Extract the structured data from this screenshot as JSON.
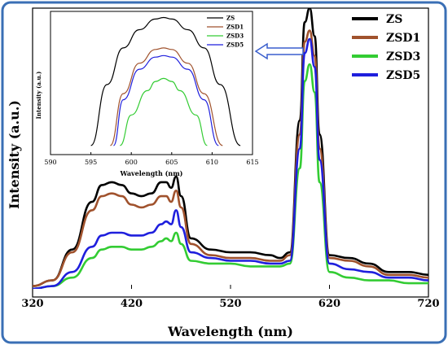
{
  "chart_data": [
    {
      "type": "line",
      "xlabel": "Wavelength (nm)",
      "ylabel": "Intensity (a.u.)",
      "xlim": [
        320,
        720
      ],
      "ylim": [
        0,
        1
      ],
      "xticks": [
        320,
        420,
        520,
        620,
        720
      ],
      "grid": false,
      "legend": "top-right",
      "series": [
        {
          "name": "ZS",
          "color": "#000000",
          "x": [
            320,
            340,
            360,
            380,
            390,
            400,
            410,
            420,
            430,
            440,
            450,
            455,
            460,
            465,
            470,
            480,
            500,
            520,
            540,
            560,
            570,
            580,
            590,
            595,
            600,
            605,
            610,
            620,
            640,
            660,
            680,
            700,
            720
          ],
          "y": [
            0.01,
            0.03,
            0.14,
            0.31,
            0.37,
            0.38,
            0.37,
            0.34,
            0.33,
            0.34,
            0.38,
            0.38,
            0.36,
            0.4,
            0.33,
            0.18,
            0.14,
            0.13,
            0.13,
            0.12,
            0.11,
            0.13,
            0.6,
            0.95,
            1.0,
            0.9,
            0.55,
            0.12,
            0.11,
            0.09,
            0.06,
            0.06,
            0.05
          ]
        },
        {
          "name": "ZSD1",
          "color": "#a0522d",
          "x": [
            320,
            340,
            360,
            380,
            390,
            400,
            410,
            420,
            430,
            440,
            450,
            455,
            460,
            465,
            470,
            480,
            500,
            520,
            540,
            560,
            570,
            580,
            590,
            595,
            600,
            605,
            610,
            620,
            640,
            660,
            680,
            700,
            720
          ],
          "y": [
            0.01,
            0.03,
            0.13,
            0.28,
            0.33,
            0.34,
            0.33,
            0.3,
            0.29,
            0.3,
            0.33,
            0.33,
            0.31,
            0.35,
            0.29,
            0.16,
            0.12,
            0.11,
            0.11,
            0.1,
            0.1,
            0.12,
            0.55,
            0.88,
            0.92,
            0.83,
            0.5,
            0.11,
            0.1,
            0.08,
            0.05,
            0.05,
            0.04
          ]
        },
        {
          "name": "ZSD3",
          "color": "#33cc33",
          "x": [
            320,
            340,
            360,
            380,
            390,
            400,
            410,
            420,
            430,
            440,
            450,
            455,
            460,
            465,
            470,
            480,
            500,
            520,
            540,
            560,
            570,
            580,
            590,
            595,
            600,
            605,
            610,
            620,
            640,
            660,
            680,
            700,
            720
          ],
          "y": [
            0.0,
            0.01,
            0.04,
            0.11,
            0.14,
            0.15,
            0.15,
            0.14,
            0.14,
            0.15,
            0.17,
            0.18,
            0.17,
            0.2,
            0.16,
            0.1,
            0.09,
            0.09,
            0.08,
            0.08,
            0.08,
            0.09,
            0.43,
            0.74,
            0.8,
            0.7,
            0.38,
            0.06,
            0.04,
            0.03,
            0.03,
            0.02,
            0.02
          ]
        },
        {
          "name": "ZSD5",
          "color": "#1f1fdd",
          "x": [
            320,
            340,
            360,
            380,
            390,
            400,
            410,
            420,
            430,
            440,
            450,
            455,
            460,
            465,
            470,
            480,
            500,
            520,
            540,
            560,
            570,
            580,
            590,
            595,
            600,
            605,
            610,
            620,
            640,
            660,
            680,
            700,
            720
          ],
          "y": [
            0.0,
            0.01,
            0.06,
            0.15,
            0.19,
            0.2,
            0.2,
            0.19,
            0.19,
            0.2,
            0.23,
            0.24,
            0.23,
            0.28,
            0.22,
            0.13,
            0.11,
            0.1,
            0.1,
            0.09,
            0.09,
            0.1,
            0.5,
            0.84,
            0.89,
            0.79,
            0.46,
            0.09,
            0.07,
            0.06,
            0.04,
            0.04,
            0.03
          ]
        }
      ]
    },
    {
      "type": "line",
      "xlabel": "Wavelength (nm)",
      "ylabel": "Intensity (a.u.)",
      "xlim": [
        590,
        615
      ],
      "ylim": [
        0.55,
        1.02
      ],
      "xticks": [
        590,
        595,
        600,
        605,
        610,
        615
      ],
      "grid": false,
      "legend": "top-right",
      "series": [
        {
          "name": "ZS",
          "color": "#000000",
          "x": [
            595,
            597,
            599,
            601,
            603,
            604,
            605,
            607,
            609,
            611,
            613.5
          ],
          "y": [
            0.58,
            0.78,
            0.9,
            0.96,
            0.995,
            1.0,
            0.995,
            0.96,
            0.9,
            0.78,
            0.58
          ]
        },
        {
          "name": "ZSD1",
          "color": "#a0522d",
          "x": [
            597.4,
            599,
            601,
            603,
            604,
            605,
            607,
            609,
            611.3
          ],
          "y": [
            0.58,
            0.75,
            0.85,
            0.895,
            0.9,
            0.895,
            0.85,
            0.75,
            0.58
          ]
        },
        {
          "name": "ZSD3",
          "color": "#33cc33",
          "x": [
            598.6,
            600,
            602,
            603,
            604,
            605,
            606,
            608,
            609.4
          ],
          "y": [
            0.58,
            0.68,
            0.76,
            0.79,
            0.8,
            0.79,
            0.76,
            0.68,
            0.58
          ]
        },
        {
          "name": "ZSD5",
          "color": "#1f1fdd",
          "x": [
            597.8,
            599,
            601,
            603,
            604,
            605,
            607,
            609,
            610.8
          ],
          "y": [
            0.58,
            0.73,
            0.83,
            0.87,
            0.875,
            0.87,
            0.83,
            0.73,
            0.58
          ]
        }
      ]
    }
  ]
}
